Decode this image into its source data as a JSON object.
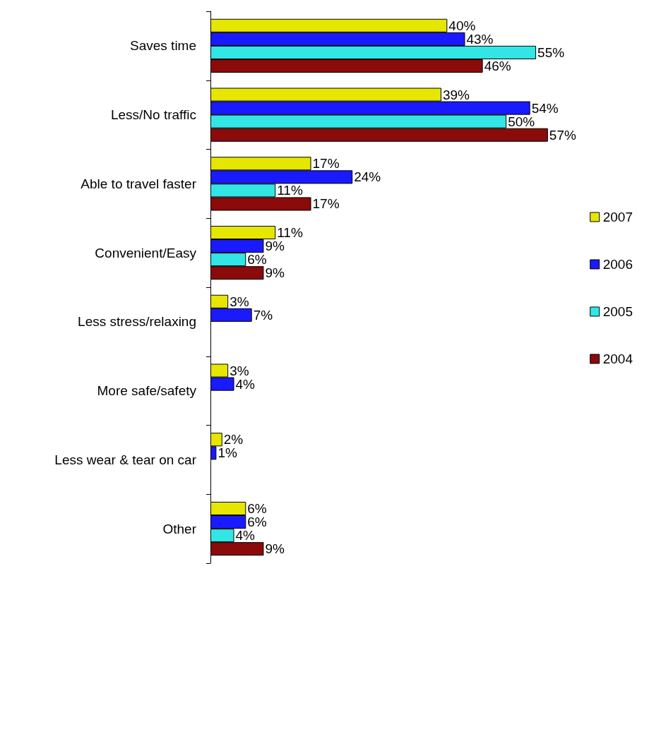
{
  "chart_data": {
    "type": "bar",
    "orientation": "horizontal",
    "legend": "right",
    "grid": false,
    "categories": [
      "Saves time",
      "Less/No traffic",
      "Able to travel faster",
      "Convenient/Easy",
      "Less stress/relaxing",
      "More safe/safety",
      "Less wear & tear on car",
      "Other"
    ],
    "series": [
      {
        "name": "2007",
        "color": "#e6e600",
        "values": [
          40,
          39,
          17,
          11,
          3,
          3,
          2,
          6
        ],
        "value_labels": [
          "40%",
          "39%",
          "17%",
          "11%",
          "3%",
          "3%",
          "2%",
          "6%"
        ]
      },
      {
        "name": "2006",
        "color": "#1a1aff",
        "values": [
          43,
          54,
          24,
          9,
          7,
          4,
          1,
          6
        ],
        "value_labels": [
          "43%",
          "54%",
          "24%",
          "9%",
          "7%",
          "4%",
          "1%",
          "6%"
        ]
      },
      {
        "name": "2005",
        "color": "#33e6e6",
        "values": [
          55,
          50,
          11,
          6,
          null,
          null,
          null,
          4
        ],
        "value_labels": [
          "55%",
          "50%",
          "11%",
          "6%",
          null,
          null,
          null,
          "4%"
        ]
      },
      {
        "name": "2004",
        "color": "#8b0a0a",
        "values": [
          46,
          57,
          17,
          9,
          null,
          null,
          null,
          9
        ],
        "value_labels": [
          "46%",
          "57%",
          "17%",
          "9%",
          null,
          null,
          null,
          "9%"
        ]
      }
    ]
  }
}
